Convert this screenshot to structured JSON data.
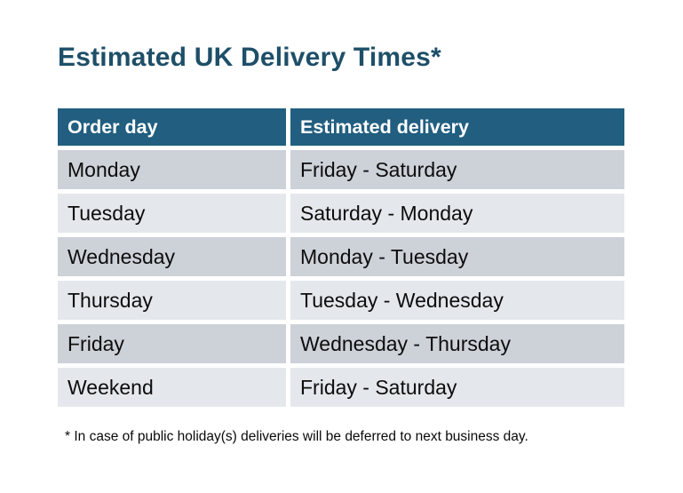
{
  "title": "Estimated UK Delivery Times*",
  "table": {
    "columns": [
      "Order day",
      "Estimated delivery"
    ],
    "rows": [
      {
        "order_day": "Monday",
        "delivery": "Friday - Saturday"
      },
      {
        "order_day": "Tuesday",
        "delivery": "Saturday - Monday"
      },
      {
        "order_day": "Wednesday",
        "delivery": "Monday - Tuesday"
      },
      {
        "order_day": "Thursday",
        "delivery": "Tuesday - Wednesday"
      },
      {
        "order_day": "Friday",
        "delivery": "Wednesday - Thursday"
      },
      {
        "order_day": "Weekend",
        "delivery": "Friday - Saturday"
      }
    ]
  },
  "footnote": "* In case of public holiday(s) deliveries will be deferred to next business day.",
  "colors": {
    "background": "#ffffff",
    "title": "#1e4f68",
    "header_bg": "#215e80",
    "header_text": "#ffffff",
    "row_dark": "#cdd1d8",
    "row_light": "#e4e8ec",
    "cell_text": "#0d0d0d"
  }
}
